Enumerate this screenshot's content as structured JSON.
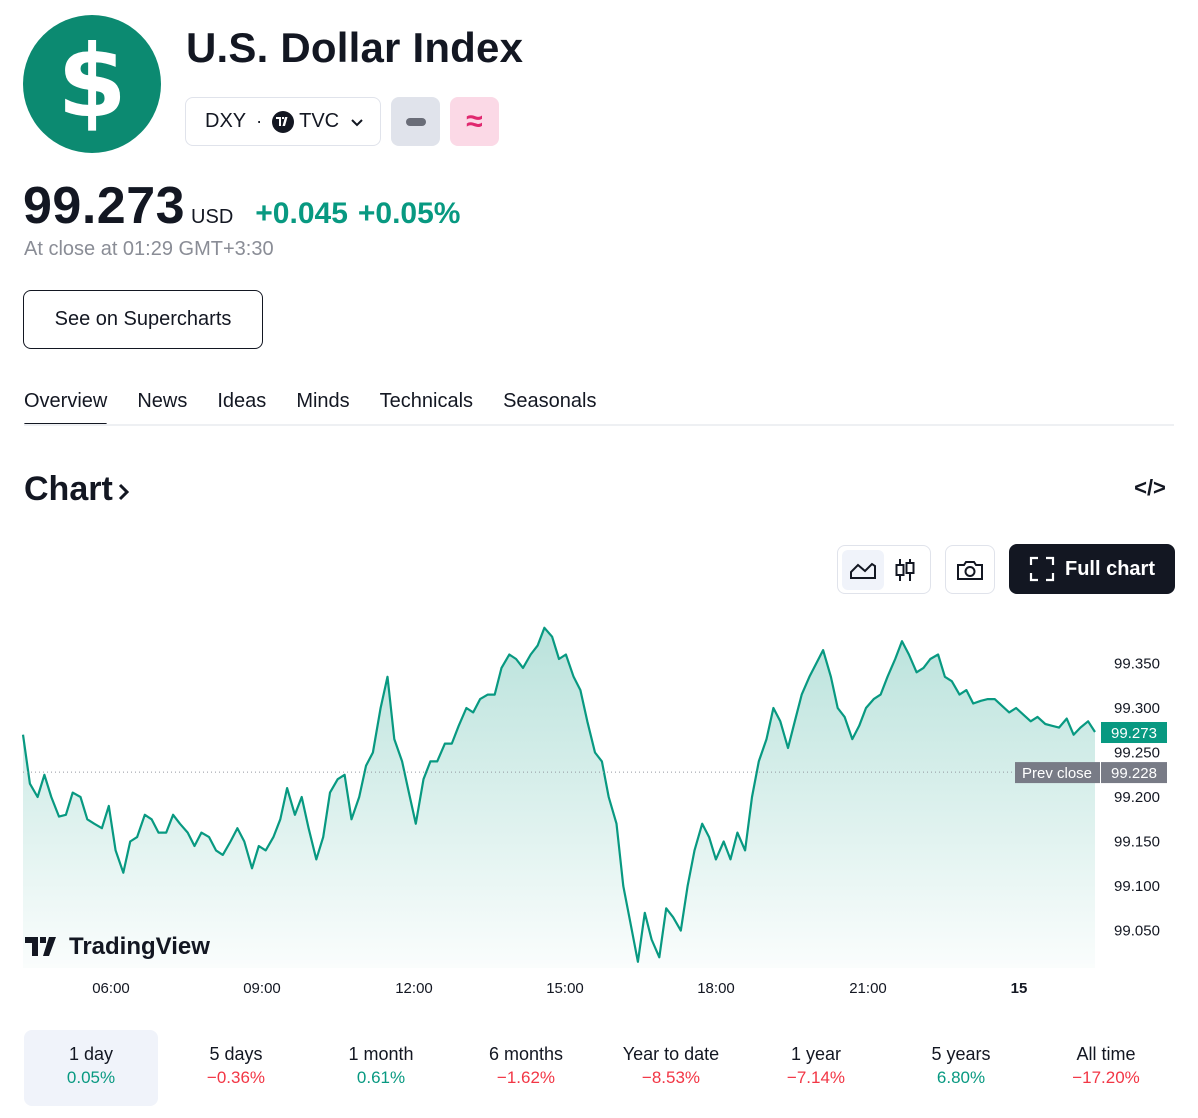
{
  "header": {
    "logo_glyph": "$",
    "title": "U.S. Dollar Index",
    "symbol": "DXY",
    "separator": "·",
    "exchange": "TVC",
    "brand_color": "#0c8a71"
  },
  "quote": {
    "price": "99.273",
    "currency": "USD",
    "change": "+0.045",
    "change_pct": "+0.05%",
    "close_time": "At close at 01:29 GMT+3:30",
    "positive_color": "#089981",
    "negative_color": "#f23645"
  },
  "actions": {
    "supercharts_label": "See on Supercharts"
  },
  "tabs": [
    {
      "label": "Overview",
      "active": true
    },
    {
      "label": "News"
    },
    {
      "label": "Ideas"
    },
    {
      "label": "Minds"
    },
    {
      "label": "Technicals"
    },
    {
      "label": "Seasonals"
    }
  ],
  "chart_section": {
    "heading": "Chart",
    "full_chart_label": "Full chart",
    "embed_glyph": "</>",
    "watermark": "TradingView"
  },
  "chart_data": {
    "type": "area",
    "x_tick_labels": [
      "06:00",
      "09:00",
      "12:00",
      "15:00",
      "18:00",
      "21:00",
      "15"
    ],
    "y_tick_labels": [
      "99.350",
      "99.300",
      "99.250",
      "99.200",
      "99.150",
      "99.100",
      "99.050"
    ],
    "y_ticks": [
      99.35,
      99.3,
      99.25,
      99.2,
      99.15,
      99.1,
      99.05
    ],
    "ylim": [
      99.008,
      99.41
    ],
    "last_value": 99.273,
    "last_label": "99.273",
    "prev_close_value": 99.228,
    "prev_close_label": "99.228",
    "prev_close_text": "Prev close",
    "line_color": "#089981",
    "points": [
      [
        0,
        99.27
      ],
      [
        0.08,
        99.215
      ],
      [
        0.17,
        99.2
      ],
      [
        0.25,
        99.225
      ],
      [
        0.33,
        99.2
      ],
      [
        0.42,
        99.178
      ],
      [
        0.5,
        99.18
      ],
      [
        0.58,
        99.205
      ],
      [
        0.67,
        99.2
      ],
      [
        0.75,
        99.175
      ],
      [
        0.83,
        99.17
      ],
      [
        0.92,
        99.165
      ],
      [
        1.0,
        99.19
      ],
      [
        1.08,
        99.14
      ],
      [
        1.17,
        99.115
      ],
      [
        1.25,
        99.15
      ],
      [
        1.33,
        99.155
      ],
      [
        1.42,
        99.18
      ],
      [
        1.5,
        99.175
      ],
      [
        1.58,
        99.16
      ],
      [
        1.67,
        99.16
      ],
      [
        1.75,
        99.18
      ],
      [
        1.83,
        99.17
      ],
      [
        1.92,
        99.16
      ],
      [
        2.0,
        99.145
      ],
      [
        2.08,
        99.16
      ],
      [
        2.17,
        99.155
      ],
      [
        2.25,
        99.14
      ],
      [
        2.33,
        99.135
      ],
      [
        2.42,
        99.15
      ],
      [
        2.5,
        99.165
      ],
      [
        2.58,
        99.15
      ],
      [
        2.67,
        99.12
      ],
      [
        2.75,
        99.145
      ],
      [
        2.83,
        99.14
      ],
      [
        2.92,
        99.155
      ],
      [
        3.0,
        99.175
      ],
      [
        3.08,
        99.21
      ],
      [
        3.17,
        99.18
      ],
      [
        3.25,
        99.2
      ],
      [
        3.33,
        99.165
      ],
      [
        3.42,
        99.13
      ],
      [
        3.5,
        99.155
      ],
      [
        3.58,
        99.205
      ],
      [
        3.67,
        99.22
      ],
      [
        3.75,
        99.225
      ],
      [
        3.83,
        99.175
      ],
      [
        3.92,
        99.2
      ],
      [
        4.0,
        99.235
      ],
      [
        4.08,
        99.25
      ],
      [
        4.17,
        99.3
      ],
      [
        4.25,
        99.335
      ],
      [
        4.33,
        99.265
      ],
      [
        4.42,
        99.24
      ],
      [
        4.5,
        99.205
      ],
      [
        4.58,
        99.17
      ],
      [
        4.67,
        99.22
      ],
      [
        4.75,
        99.24
      ],
      [
        4.83,
        99.24
      ],
      [
        4.92,
        99.26
      ],
      [
        5.0,
        99.26
      ],
      [
        5.08,
        99.28
      ],
      [
        5.17,
        99.3
      ],
      [
        5.25,
        99.295
      ],
      [
        5.33,
        99.31
      ],
      [
        5.42,
        99.315
      ],
      [
        5.5,
        99.315
      ],
      [
        5.58,
        99.345
      ],
      [
        5.67,
        99.36
      ],
      [
        5.75,
        99.355
      ],
      [
        5.83,
        99.345
      ],
      [
        5.92,
        99.36
      ],
      [
        6.0,
        99.37
      ],
      [
        6.08,
        99.39
      ],
      [
        6.17,
        99.38
      ],
      [
        6.25,
        99.355
      ],
      [
        6.33,
        99.36
      ],
      [
        6.42,
        99.335
      ],
      [
        6.5,
        99.32
      ],
      [
        6.58,
        99.285
      ],
      [
        6.67,
        99.25
      ],
      [
        6.75,
        99.24
      ],
      [
        6.83,
        99.2
      ],
      [
        6.92,
        99.17
      ],
      [
        7.0,
        99.1
      ],
      [
        7.08,
        99.06
      ],
      [
        7.17,
        99.015
      ],
      [
        7.25,
        99.07
      ],
      [
        7.33,
        99.04
      ],
      [
        7.42,
        99.02
      ],
      [
        7.5,
        99.075
      ],
      [
        7.58,
        99.065
      ],
      [
        7.67,
        99.05
      ],
      [
        7.75,
        99.1
      ],
      [
        7.83,
        99.14
      ],
      [
        7.92,
        99.17
      ],
      [
        8.0,
        99.155
      ],
      [
        8.08,
        99.13
      ],
      [
        8.17,
        99.15
      ],
      [
        8.25,
        99.13
      ],
      [
        8.33,
        99.16
      ],
      [
        8.42,
        99.14
      ],
      [
        8.5,
        99.2
      ],
      [
        8.58,
        99.24
      ],
      [
        8.67,
        99.265
      ],
      [
        8.75,
        99.3
      ],
      [
        8.83,
        99.285
      ],
      [
        8.92,
        99.255
      ],
      [
        9.0,
        99.285
      ],
      [
        9.08,
        99.315
      ],
      [
        9.17,
        99.335
      ],
      [
        9.25,
        99.35
      ],
      [
        9.33,
        99.365
      ],
      [
        9.42,
        99.335
      ],
      [
        9.5,
        99.3
      ],
      [
        9.58,
        99.29
      ],
      [
        9.67,
        99.265
      ],
      [
        9.75,
        99.28
      ],
      [
        9.83,
        99.3
      ],
      [
        9.92,
        99.31
      ],
      [
        10.0,
        99.315
      ],
      [
        10.08,
        99.335
      ],
      [
        10.17,
        99.355
      ],
      [
        10.25,
        99.375
      ],
      [
        10.33,
        99.36
      ],
      [
        10.42,
        99.34
      ],
      [
        10.5,
        99.345
      ],
      [
        10.58,
        99.355
      ],
      [
        10.67,
        99.36
      ],
      [
        10.75,
        99.335
      ],
      [
        10.83,
        99.33
      ],
      [
        10.92,
        99.315
      ],
      [
        11.0,
        99.32
      ],
      [
        11.08,
        99.305
      ],
      [
        11.17,
        99.308
      ],
      [
        11.25,
        99.31
      ],
      [
        11.33,
        99.31
      ],
      [
        11.42,
        99.302
      ],
      [
        11.5,
        99.295
      ],
      [
        11.58,
        99.3
      ],
      [
        11.67,
        99.292
      ],
      [
        11.75,
        99.285
      ],
      [
        11.83,
        99.29
      ],
      [
        11.92,
        99.282
      ],
      [
        12.0,
        99.28
      ],
      [
        12.08,
        99.278
      ],
      [
        12.17,
        99.288
      ],
      [
        12.25,
        99.27
      ],
      [
        12.33,
        99.278
      ],
      [
        12.42,
        99.285
      ],
      [
        12.5,
        99.273
      ]
    ]
  },
  "ranges": [
    {
      "label": "1 day",
      "value": "0.05%",
      "positive": true,
      "active": true
    },
    {
      "label": "5 days",
      "value": "−0.36%",
      "positive": false
    },
    {
      "label": "1 month",
      "value": "0.61%",
      "positive": true
    },
    {
      "label": "6 months",
      "value": "−1.62%",
      "positive": false
    },
    {
      "label": "Year to date",
      "value": "−8.53%",
      "positive": false
    },
    {
      "label": "1 year",
      "value": "−7.14%",
      "positive": false
    },
    {
      "label": "5 years",
      "value": "6.80%",
      "positive": true
    },
    {
      "label": "All time",
      "value": "−17.20%",
      "positive": false
    }
  ]
}
